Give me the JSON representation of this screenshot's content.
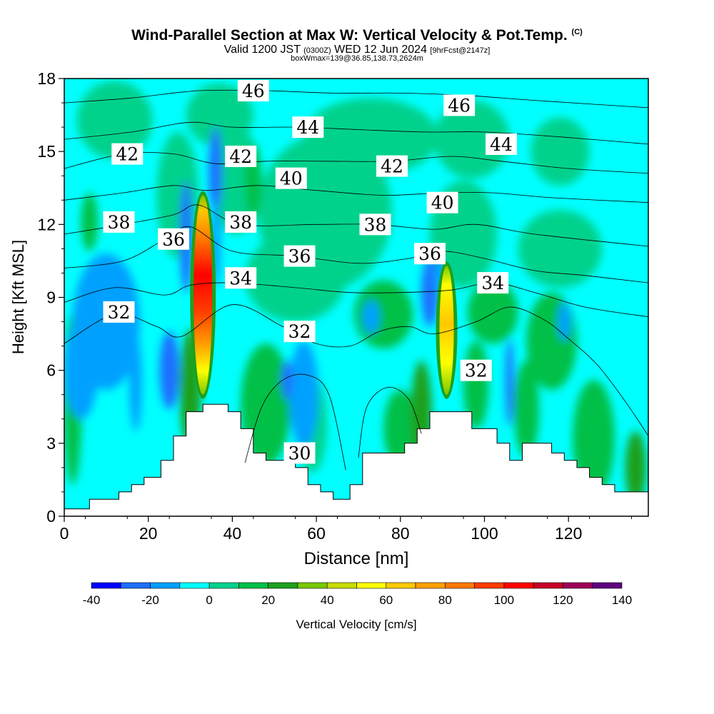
{
  "title": "Wind-Parallel Section at Max W: Vertical Velocity & Pot.Temp.",
  "copyright": "(C)",
  "subtitle_a": "Valid 1200 JST",
  "subtitle_b": "(0300Z)",
  "subtitle_c": "WED 12 Jun 2024",
  "subtitle_d": "[9hrFcst@2147z]",
  "subtitle2": "boxWmax=139@36.85,138.73,2624m",
  "chart_data": {
    "type": "heatmap",
    "xlabel": "Distance [nm]",
    "ylabel": "Height [Kft MSL]",
    "xlim": [
      0,
      139
    ],
    "ylim": [
      0,
      18
    ],
    "x_ticks": [
      0,
      20,
      40,
      60,
      80,
      100,
      120
    ],
    "y_ticks": [
      0,
      3,
      6,
      9,
      12,
      15,
      18
    ],
    "colorbar": {
      "label": "Vertical Velocity [cm/s]",
      "levels": [
        -40,
        -30,
        -20,
        -10,
        0,
        10,
        20,
        30,
        40,
        50,
        60,
        70,
        80,
        90,
        100,
        110,
        120,
        130,
        140
      ],
      "tick_labels": [
        "-40",
        "-20",
        "0",
        "20",
        "40",
        "60",
        "80",
        "100",
        "120",
        "140"
      ],
      "colors": [
        "#0000ff",
        "#1e6eff",
        "#00a0ff",
        "#00ffff",
        "#00d28c",
        "#00c047",
        "#1ea01e",
        "#78c800",
        "#c8dc00",
        "#ffff00",
        "#ffc800",
        "#ffa000",
        "#ff7800",
        "#ff3c00",
        "#ff0000",
        "#c80028",
        "#a0005a",
        "#600080"
      ]
    },
    "updrafts": [
      {
        "x": 33,
        "base_kft": 5.0,
        "top_kft": 13.2,
        "max_w_cms": 139
      },
      {
        "x": 91,
        "base_kft": 5.0,
        "top_kft": 10.3,
        "max_w_cms": 60
      }
    ],
    "terrain": [
      [
        0,
        0.3
      ],
      [
        6,
        0.3
      ],
      [
        6,
        0.7
      ],
      [
        13,
        0.7
      ],
      [
        13,
        1.0
      ],
      [
        16,
        1.0
      ],
      [
        16,
        1.3
      ],
      [
        19,
        1.3
      ],
      [
        19,
        1.6
      ],
      [
        23,
        1.6
      ],
      [
        23,
        2.3
      ],
      [
        26,
        2.3
      ],
      [
        26,
        3.3
      ],
      [
        29,
        3.3
      ],
      [
        29,
        4.3
      ],
      [
        33,
        4.3
      ],
      [
        33,
        4.6
      ],
      [
        39,
        4.6
      ],
      [
        39,
        4.3
      ],
      [
        42,
        4.3
      ],
      [
        42,
        3.6
      ],
      [
        45,
        3.6
      ],
      [
        45,
        2.6
      ],
      [
        48,
        2.6
      ],
      [
        48,
        2.3
      ],
      [
        55,
        2.3
      ],
      [
        55,
        2.0
      ],
      [
        58,
        2.0
      ],
      [
        58,
        1.3
      ],
      [
        61,
        1.3
      ],
      [
        61,
        1.0
      ],
      [
        64,
        1.0
      ],
      [
        64,
        0.7
      ],
      [
        68,
        0.7
      ],
      [
        68,
        1.3
      ],
      [
        71,
        1.3
      ],
      [
        71,
        2.6
      ],
      [
        81,
        2.6
      ],
      [
        81,
        3.0
      ],
      [
        84,
        3.0
      ],
      [
        84,
        3.6
      ],
      [
        87,
        3.6
      ],
      [
        87,
        4.3
      ],
      [
        97,
        4.3
      ],
      [
        97,
        3.6
      ],
      [
        103,
        3.6
      ],
      [
        103,
        3.0
      ],
      [
        106,
        3.0
      ],
      [
        106,
        2.3
      ],
      [
        109,
        2.3
      ],
      [
        109,
        3.0
      ],
      [
        116,
        3.0
      ],
      [
        116,
        2.6
      ],
      [
        119,
        2.6
      ],
      [
        119,
        2.3
      ],
      [
        122,
        2.3
      ],
      [
        122,
        2.0
      ],
      [
        125,
        2.0
      ],
      [
        125,
        1.6
      ],
      [
        128,
        1.6
      ],
      [
        128,
        1.3
      ],
      [
        131,
        1.3
      ],
      [
        131,
        1.0
      ],
      [
        139,
        1.0
      ]
    ],
    "isentropes": [
      {
        "theta": 30,
        "label": "30",
        "label_pos": [
          56,
          2.6
        ],
        "pts": [
          [
            43,
            2.2
          ],
          [
            47,
            4.5
          ],
          [
            52,
            5.6
          ],
          [
            58,
            5.8
          ],
          [
            63,
            5.0
          ],
          [
            67,
            1.9
          ]
        ]
      },
      {
        "theta": 30,
        "label": "",
        "label_pos": null,
        "pts": [
          [
            70,
            2.4
          ],
          [
            72,
            4.5
          ],
          [
            77,
            5.3
          ],
          [
            82,
            4.8
          ],
          [
            85,
            3.4
          ]
        ]
      },
      {
        "theta": 32,
        "label": "32",
        "label_pos": [
          56,
          7.6
        ],
        "pts": [
          [
            0,
            7.1
          ],
          [
            12,
            8.3
          ],
          [
            22,
            7.8
          ],
          [
            28,
            7.4
          ],
          [
            40,
            8.7
          ],
          [
            52,
            7.8
          ],
          [
            60,
            7.1
          ],
          [
            68,
            7.0
          ],
          [
            75,
            7.6
          ],
          [
            82,
            7.8
          ],
          [
            88,
            7.5
          ],
          [
            98,
            8.0
          ],
          [
            106,
            8.6
          ],
          [
            114,
            8.1
          ],
          [
            120,
            7.3
          ],
          [
            127,
            6.2
          ],
          [
            134,
            4.6
          ],
          [
            139,
            3.3
          ]
        ]
      },
      {
        "theta": 34,
        "label": "34",
        "label_pos": [
          42,
          9.8
        ],
        "pts": [
          [
            0,
            8.8
          ],
          [
            12,
            9.4
          ],
          [
            24,
            9.1
          ],
          [
            30,
            9.5
          ],
          [
            40,
            9.6
          ],
          [
            55,
            9.4
          ],
          [
            68,
            9.2
          ],
          [
            80,
            9.2
          ],
          [
            92,
            9.3
          ],
          [
            102,
            9.6
          ],
          [
            112,
            9.2
          ],
          [
            124,
            8.6
          ],
          [
            139,
            8.2
          ]
        ]
      },
      {
        "theta": 36,
        "label": "36",
        "label_pos": [
          56,
          10.7
        ],
        "pts": [
          [
            0,
            10.2
          ],
          [
            14,
            10.5
          ],
          [
            24,
            11.4
          ],
          [
            30,
            11.9
          ],
          [
            40,
            10.9
          ],
          [
            55,
            10.7
          ],
          [
            70,
            10.4
          ],
          [
            82,
            10.6
          ],
          [
            90,
            10.9
          ],
          [
            100,
            10.6
          ],
          [
            112,
            10.1
          ],
          [
            124,
            9.9
          ],
          [
            139,
            9.6
          ]
        ]
      },
      {
        "theta": 38,
        "label": "38",
        "label_pos": [
          74,
          12.0
        ],
        "pts": [
          [
            0,
            11.6
          ],
          [
            14,
            12.0
          ],
          [
            26,
            12.4
          ],
          [
            32,
            12.8
          ],
          [
            42,
            12.0
          ],
          [
            60,
            12.0
          ],
          [
            74,
            12.0
          ],
          [
            88,
            11.8
          ],
          [
            98,
            12.0
          ],
          [
            112,
            11.6
          ],
          [
            139,
            11.1
          ]
        ]
      },
      {
        "theta": 40,
        "label": "40",
        "label_pos": [
          54,
          13.9
        ],
        "pts": [
          [
            0,
            13.0
          ],
          [
            14,
            13.3
          ],
          [
            26,
            13.6
          ],
          [
            34,
            13.4
          ],
          [
            46,
            13.6
          ],
          [
            60,
            13.4
          ],
          [
            76,
            13.2
          ],
          [
            90,
            13.3
          ],
          [
            102,
            13.3
          ],
          [
            116,
            13.1
          ],
          [
            139,
            12.9
          ]
        ]
      },
      {
        "theta": 42,
        "label": "42",
        "label_pos": [
          15,
          14.9
        ],
        "pts": [
          [
            0,
            14.3
          ],
          [
            14,
            14.9
          ],
          [
            26,
            14.9
          ],
          [
            36,
            14.5
          ],
          [
            48,
            14.6
          ],
          [
            62,
            14.6
          ],
          [
            78,
            14.6
          ],
          [
            92,
            14.8
          ],
          [
            104,
            14.6
          ],
          [
            120,
            14.3
          ],
          [
            139,
            14.1
          ]
        ]
      },
      {
        "theta": 44,
        "label": "44",
        "label_pos": [
          58,
          16.0
        ],
        "pts": [
          [
            0,
            15.5
          ],
          [
            16,
            15.8
          ],
          [
            30,
            16.2
          ],
          [
            40,
            16.0
          ],
          [
            56,
            16.0
          ],
          [
            70,
            15.9
          ],
          [
            86,
            15.8
          ],
          [
            100,
            15.8
          ],
          [
            118,
            15.6
          ],
          [
            139,
            15.3
          ]
        ]
      },
      {
        "theta": 46,
        "label": "46",
        "label_pos": [
          45,
          17.5
        ],
        "pts": [
          [
            0,
            17.0
          ],
          [
            16,
            17.2
          ],
          [
            32,
            17.5
          ],
          [
            48,
            17.5
          ],
          [
            64,
            17.4
          ],
          [
            80,
            17.4
          ],
          [
            96,
            17.3
          ],
          [
            112,
            17.1
          ],
          [
            139,
            16.8
          ]
        ]
      }
    ]
  },
  "extra_labels": [
    {
      "text": "46",
      "x": 94,
      "y": 16.9
    },
    {
      "text": "44",
      "x": 104,
      "y": 15.3
    },
    {
      "text": "42",
      "x": 42,
      "y": 14.8
    },
    {
      "text": "42",
      "x": 78,
      "y": 14.4
    },
    {
      "text": "40",
      "x": 90,
      "y": 12.9
    },
    {
      "text": "38",
      "x": 13,
      "y": 12.1
    },
    {
      "text": "38",
      "x": 42,
      "y": 12.1
    },
    {
      "text": "36",
      "x": 26,
      "y": 11.4
    },
    {
      "text": "36",
      "x": 87,
      "y": 10.8
    },
    {
      "text": "34",
      "x": 102,
      "y": 9.6
    },
    {
      "text": "32",
      "x": 13,
      "y": 8.4
    },
    {
      "text": "32",
      "x": 98,
      "y": 6.0
    }
  ]
}
